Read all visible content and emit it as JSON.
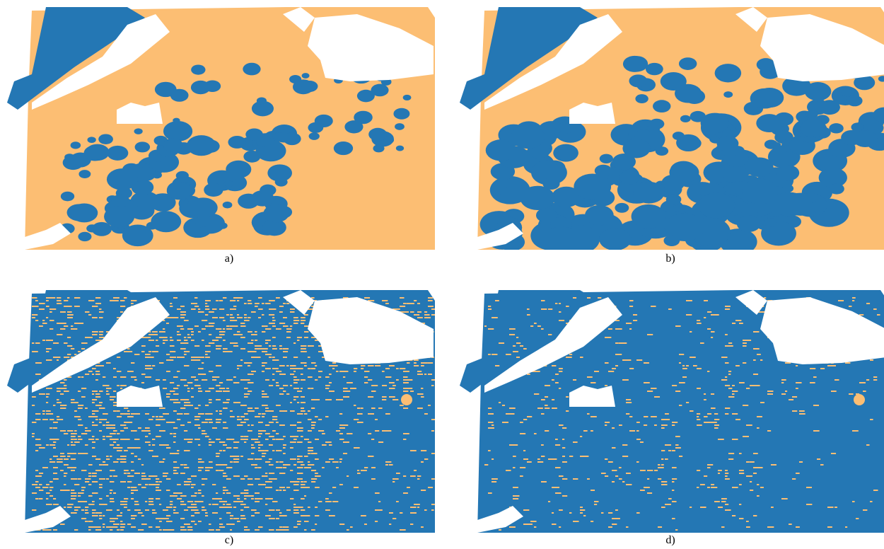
{
  "colors": {
    "blue": "#2477b4",
    "orange": "#fcbe73",
    "white": "#ffffff"
  },
  "panels": [
    {
      "id": "a",
      "caption": "a)",
      "base": "orange",
      "speckle": "blue",
      "speckle_density": 0.0
    },
    {
      "id": "b",
      "caption": "b)",
      "base": "orange",
      "speckle": "blue",
      "speckle_density": 0.0
    },
    {
      "id": "c",
      "caption": "c)",
      "base": "blue",
      "speckle": "orange",
      "speckle_density": 0.22
    },
    {
      "id": "d",
      "caption": "d)",
      "base": "blue",
      "speckle": "orange",
      "speckle_density": 0.07
    }
  ]
}
